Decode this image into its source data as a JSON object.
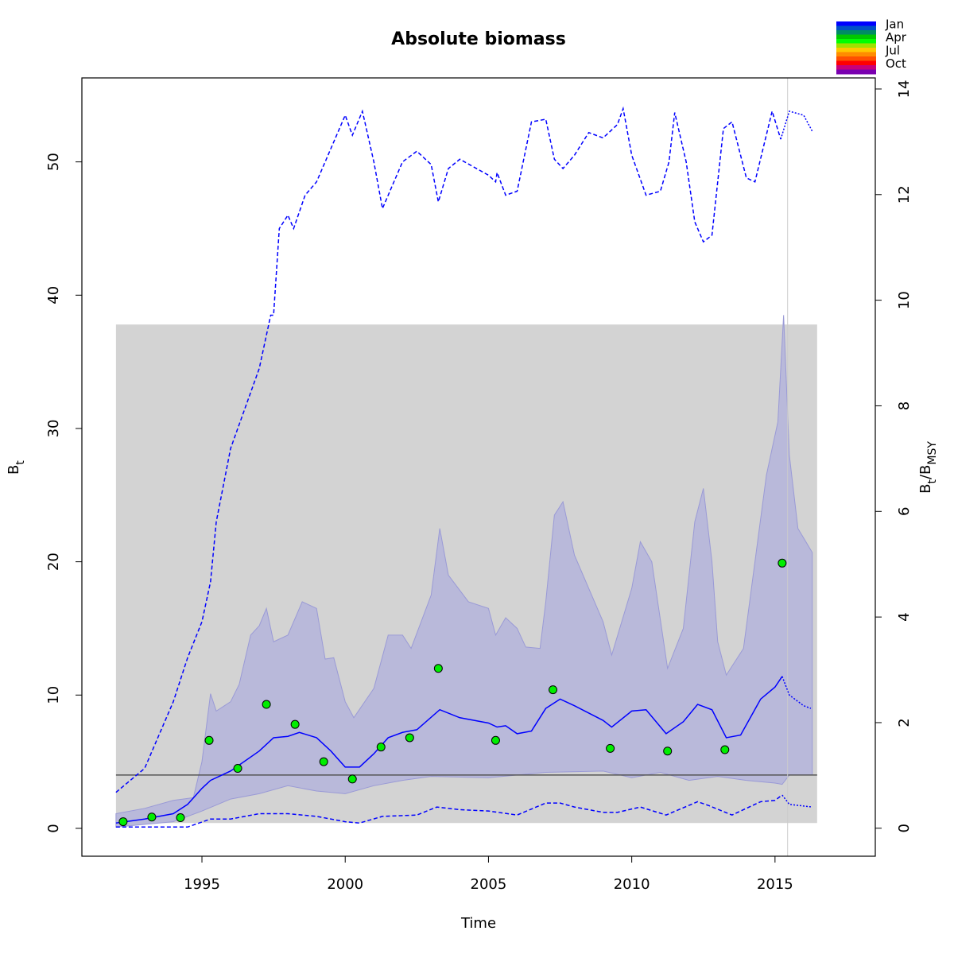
{
  "chart_data": {
    "type": "line",
    "title": "Absolute biomass",
    "xlabel": "Time",
    "ylabel": [
      "B",
      "t"
    ],
    "y2label": [
      "B",
      "t",
      "/B",
      "MSY"
    ],
    "xlim": [
      1990.81,
      2018.5
    ],
    "ylim": [
      -2.09,
      56.3
    ],
    "y2lim": [
      -0.53,
      14.21
    ],
    "xticks": [
      1995,
      2000,
      2005,
      2010,
      2015
    ],
    "yticks": [
      0,
      10,
      20,
      30,
      40,
      50
    ],
    "y2ticks": [
      0,
      2,
      4,
      6,
      8,
      10,
      12,
      14
    ],
    "shaded_region": {
      "x": [
        1992,
        2016.47
      ],
      "y": [
        0.4,
        37.8
      ],
      "color": "#d3d3d3"
    },
    "band": {
      "color": "#b9b9da",
      "x_upper": [
        1992,
        1993,
        1994,
        1994.7,
        1995,
        1995.3,
        1995.5,
        1996,
        1996.3,
        1996.7,
        1997,
        1997.25,
        1997.5,
        1998,
        1998.5,
        1999,
        1999.3,
        1999.6,
        2000,
        2000.3,
        2001,
        2001.5,
        2002,
        2002.3,
        2003,
        2003.3,
        2003.6,
        2004.3,
        2005,
        2005.25,
        2005.6,
        2006,
        2006.3,
        2006.8,
        2007,
        2007.3,
        2007.6,
        2008,
        2008.7,
        2009,
        2009.3,
        2010,
        2010.3,
        2010.7,
        2011.25,
        2011.8,
        2012.2,
        2012.5,
        2012.8,
        2013,
        2013.3,
        2013.9,
        2014.3,
        2014.7,
        2015.1,
        2015.3,
        2015.5,
        2015.8,
        2016.3
      ],
      "upper": [
        1.1,
        1.5,
        2.1,
        2.3,
        5,
        10.1,
        8.8,
        9.5,
        10.8,
        14.5,
        15.2,
        16.5,
        14.0,
        14.5,
        17.0,
        16.5,
        12.7,
        12.8,
        9.5,
        8.3,
        10.5,
        14.5,
        14.5,
        13.5,
        17.5,
        22.5,
        19.0,
        17.0,
        16.5,
        14.5,
        15.8,
        15.0,
        13.6,
        13.5,
        17.0,
        23.5,
        24.5,
        20.5,
        17.0,
        15.5,
        13.0,
        18.0,
        21.5,
        20.0,
        12.0,
        15.0,
        23.0,
        25.5,
        20.0,
        14.0,
        11.5,
        13.5,
        20.0,
        26.5,
        30.5,
        38.5,
        28.0,
        22.5,
        20.7
      ],
      "x_lower": [
        1992,
        1994,
        1995,
        1996,
        1997,
        1998,
        1999,
        2000,
        2001,
        2002,
        2003,
        2005,
        2007,
        2009,
        2010,
        2011,
        2012,
        2013,
        2014,
        2015,
        2015.25,
        2015.5,
        2016.3
      ],
      "lower": [
        0.1,
        0.5,
        1.3,
        2.2,
        2.6,
        3.2,
        2.8,
        2.6,
        3.2,
        3.6,
        3.9,
        3.8,
        4.2,
        4.3,
        3.8,
        4.2,
        3.6,
        3.9,
        3.6,
        3.4,
        3.3,
        4.0,
        4.0
      ]
    },
    "series": [
      {
        "name": "estimate",
        "color": "#0000ff",
        "style": "solid",
        "x": [
          1992,
          1993,
          1994,
          1994.5,
          1995,
          1995.3,
          1996,
          1997,
          1997.5,
          1998,
          1998.4,
          1999,
          1999.5,
          2000,
          2000.5,
          2001,
          2001.5,
          2002,
          2002.5,
          2003.3,
          2004,
          2005,
          2005.3,
          2005.6,
          2006,
          2006.5,
          2007,
          2007.5,
          2008,
          2009,
          2009.3,
          2010,
          2010.5,
          2011.2,
          2011.8,
          2012.3,
          2012.8,
          2013.3,
          2013.8,
          2014.5,
          2015,
          2015.25
        ],
        "values": [
          0.4,
          0.7,
          1.1,
          1.8,
          3.0,
          3.6,
          4.3,
          5.8,
          6.8,
          6.9,
          7.2,
          6.8,
          5.8,
          4.6,
          4.6,
          5.6,
          6.8,
          7.2,
          7.4,
          8.9,
          8.3,
          7.9,
          7.6,
          7.7,
          7.1,
          7.3,
          9.0,
          9.7,
          9.2,
          8.1,
          7.6,
          8.8,
          8.9,
          7.1,
          8.0,
          9.3,
          8.9,
          6.8,
          7.0,
          9.7,
          10.6,
          11.4
        ]
      },
      {
        "name": "estimate-forecast",
        "color": "#0000ff",
        "style": "dotted",
        "x": [
          2015.25,
          2015.5,
          2016,
          2016.25
        ],
        "values": [
          11.4,
          10.0,
          9.2,
          9.0
        ]
      },
      {
        "name": "upper",
        "color": "#0000ff",
        "style": "dashed",
        "x": [
          1992,
          1993,
          1994,
          1994.5,
          1995,
          1995.3,
          1995.5,
          1996,
          1996.5,
          1997,
          1997.4,
          1997.5,
          1997.7,
          1998,
          1998.2,
          1998.6,
          1999,
          2000,
          2000.25,
          2000.6,
          2001,
          2001.3,
          2002,
          2002.5,
          2003,
          2003.25,
          2003.6,
          2004,
          2005,
          2005.25,
          2005.3,
          2005.6,
          2006,
          2006.5,
          2007,
          2007.3,
          2007.6,
          2008,
          2008.5,
          2009,
          2009.5,
          2009.7,
          2010,
          2010.5,
          2011,
          2011.3,
          2011.5,
          2011.9,
          2012.2,
          2012.5,
          2012.8,
          2013.2,
          2013.5,
          2014,
          2014.3,
          2014.9,
          2015.2
        ],
        "values": [
          2.7,
          4.5,
          9.5,
          12.8,
          15.5,
          18.5,
          23,
          28.5,
          31.5,
          34.5,
          38.5,
          38.5,
          45,
          46,
          45,
          47.5,
          48.5,
          53.5,
          52,
          53.8,
          50,
          46.5,
          50,
          50.8,
          49.8,
          47,
          49.5,
          50.2,
          49,
          48.5,
          49.2,
          47.5,
          47.8,
          53,
          53.2,
          50.2,
          49.5,
          50.5,
          52.2,
          51.8,
          52.8,
          54,
          50.5,
          47.5,
          47.8,
          50,
          53.7,
          50,
          45.5,
          44.0,
          44.5,
          52.5,
          53.0,
          48.8,
          48.5,
          53.8,
          51.7
        ]
      },
      {
        "name": "upper-forecast",
        "color": "#0000ff",
        "style": "dotted",
        "x": [
          2015.2,
          2015.5,
          2016,
          2016.3
        ],
        "values": [
          51.7,
          53.8,
          53.5,
          52.3
        ]
      },
      {
        "name": "lower",
        "color": "#0000ff",
        "style": "dashed",
        "x": [
          1992,
          1994.5,
          1995.3,
          1996,
          1997,
          1998,
          1999,
          2000,
          2000.5,
          2001.3,
          2002.5,
          2003.2,
          2004,
          2005,
          2006,
          2007,
          2007.5,
          2008,
          2009,
          2009.5,
          2010.3,
          2011.2,
          2012.3,
          2012.7,
          2013.5,
          2014.5,
          2015,
          2015.25
        ],
        "values": [
          0.1,
          0.1,
          0.7,
          0.7,
          1.1,
          1.1,
          0.9,
          0.5,
          0.4,
          0.9,
          1.0,
          1.6,
          1.4,
          1.3,
          1.0,
          1.9,
          1.9,
          1.6,
          1.2,
          1.2,
          1.6,
          1.0,
          2.0,
          1.7,
          1.0,
          2.0,
          2.1,
          2.5
        ]
      },
      {
        "name": "lower-forecast",
        "color": "#0000ff",
        "style": "dotted",
        "x": [
          2015.25,
          2015.5,
          2016.3
        ],
        "values": [
          2.5,
          1.8,
          1.6
        ]
      }
    ],
    "points": {
      "color": "#00ee00",
      "x": [
        1992.25,
        1993.25,
        1994.25,
        1995.25,
        1996.25,
        1997.25,
        1998.25,
        1999.25,
        2000.25,
        2001.25,
        2002.25,
        2003.25,
        2005.25,
        2007.25,
        2009.25,
        2011.25,
        2013.25,
        2015.25
      ],
      "values": [
        0.5,
        0.85,
        0.8,
        6.6,
        4.5,
        9.3,
        7.8,
        5.0,
        3.7,
        6.1,
        6.8,
        12.0,
        6.6,
        10.4,
        6.0,
        5.8,
        5.9,
        19.9
      ]
    },
    "hline": {
      "value": 4.0,
      "color": "#555555"
    },
    "vline": {
      "value": 2015.44,
      "color": "#cccccc"
    },
    "season_legend": {
      "labels": [
        "Jan",
        "Apr",
        "Jul",
        "Oct"
      ],
      "colors": [
        "#0000ff",
        "#0050c8",
        "#008c64",
        "#00c800",
        "#00ff00",
        "#a0e000",
        "#ffc800",
        "#ff8c00",
        "#ff5000",
        "#ff0000",
        "#c8007a",
        "#7a00b0"
      ]
    }
  }
}
